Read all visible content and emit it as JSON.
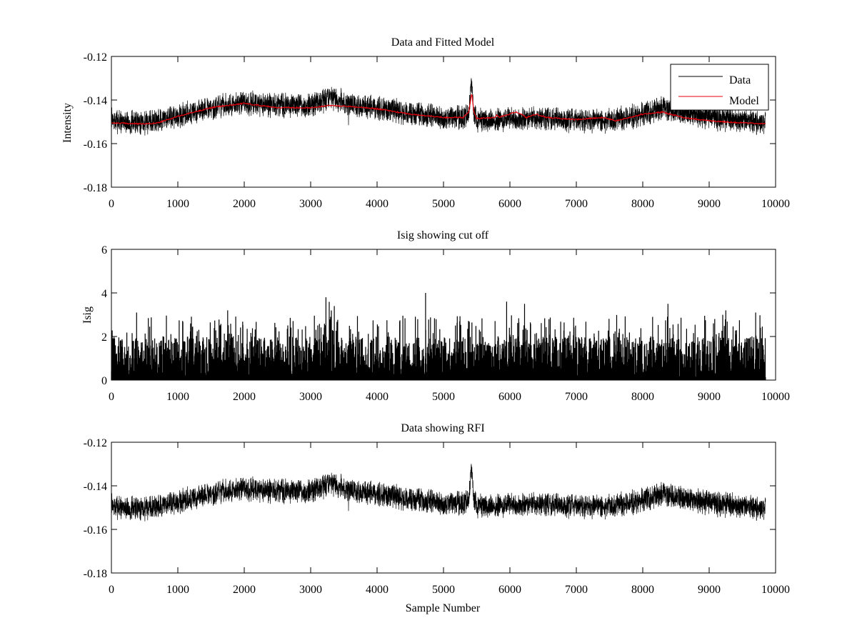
{
  "chart_data": [
    {
      "type": "line",
      "title": "Data and Fitted Model",
      "xlabel": "",
      "ylabel": "Intensity",
      "xlim": [
        0,
        10000
      ],
      "ylim": [
        -0.18,
        -0.12
      ],
      "xticks": [
        0,
        1000,
        2000,
        3000,
        4000,
        5000,
        6000,
        7000,
        8000,
        9000,
        10000
      ],
      "yticks": [
        -0.18,
        -0.16,
        -0.14,
        -0.12
      ],
      "xtick_labels": [
        "0",
        "1000",
        "2000",
        "3000",
        "4000",
        "5000",
        "6000",
        "7000",
        "8000",
        "9000",
        "10000"
      ],
      "ytick_labels": [
        "-0.18",
        "-0.16",
        "-0.14",
        "-0.12"
      ],
      "grid": false,
      "legend": "top-right",
      "x_end": 9850,
      "noise_amplitude": 0.0045,
      "series": [
        {
          "name": "Data",
          "color": "#000000",
          "baseline": [
            [
              0,
              -0.1495
            ],
            [
              500,
              -0.1505
            ],
            [
              1000,
              -0.1475
            ],
            [
              1500,
              -0.1435
            ],
            [
              2000,
              -0.1415
            ],
            [
              2500,
              -0.1425
            ],
            [
              3000,
              -0.1425
            ],
            [
              3300,
              -0.1385
            ],
            [
              3600,
              -0.142
            ],
            [
              4000,
              -0.144
            ],
            [
              4500,
              -0.146
            ],
            [
              5000,
              -0.148
            ],
            [
              5300,
              -0.148
            ],
            [
              5380,
              -0.146
            ],
            [
              5420,
              -0.131
            ],
            [
              5450,
              -0.145
            ],
            [
              5500,
              -0.1495
            ],
            [
              6000,
              -0.1485
            ],
            [
              6500,
              -0.1485
            ],
            [
              7000,
              -0.1495
            ],
            [
              7500,
              -0.1495
            ],
            [
              8000,
              -0.1465
            ],
            [
              8300,
              -0.1435
            ],
            [
              8600,
              -0.1455
            ],
            [
              9000,
              -0.148
            ],
            [
              9500,
              -0.1495
            ],
            [
              9850,
              -0.1505
            ]
          ]
        },
        {
          "name": "Model",
          "color": "#e8000b",
          "baseline": [
            [
              0,
              -0.1505
            ],
            [
              500,
              -0.151
            ],
            [
              700,
              -0.1505
            ],
            [
              1000,
              -0.1475
            ],
            [
              1500,
              -0.1435
            ],
            [
              2000,
              -0.1415
            ],
            [
              2500,
              -0.1435
            ],
            [
              3000,
              -0.1435
            ],
            [
              3300,
              -0.1425
            ],
            [
              3600,
              -0.143
            ],
            [
              4000,
              -0.144
            ],
            [
              4500,
              -0.1465
            ],
            [
              5000,
              -0.148
            ],
            [
              5300,
              -0.148
            ],
            [
              5380,
              -0.1455
            ],
            [
              5425,
              -0.1365
            ],
            [
              5455,
              -0.145
            ],
            [
              5500,
              -0.1485
            ],
            [
              5780,
              -0.148
            ],
            [
              5800,
              -0.1465
            ],
            [
              5830,
              -0.148
            ],
            [
              6100,
              -0.1455
            ],
            [
              6250,
              -0.148
            ],
            [
              6400,
              -0.1465
            ],
            [
              6550,
              -0.148
            ],
            [
              7000,
              -0.149
            ],
            [
              7400,
              -0.148
            ],
            [
              7600,
              -0.1495
            ],
            [
              8000,
              -0.1465
            ],
            [
              8300,
              -0.1455
            ],
            [
              8600,
              -0.148
            ],
            [
              9000,
              -0.1495
            ],
            [
              9500,
              -0.1505
            ],
            [
              9850,
              -0.151
            ]
          ]
        }
      ]
    },
    {
      "type": "line",
      "title": "Isig showing cut off",
      "xlabel": "",
      "ylabel": "Isig",
      "xlim": [
        0,
        10000
      ],
      "ylim": [
        0,
        6
      ],
      "xticks": [
        0,
        1000,
        2000,
        3000,
        4000,
        5000,
        6000,
        7000,
        8000,
        9000,
        10000
      ],
      "yticks": [
        0,
        2,
        4,
        6
      ],
      "xtick_labels": [
        "0",
        "1000",
        "2000",
        "3000",
        "4000",
        "5000",
        "6000",
        "7000",
        "8000",
        "9000",
        "10000"
      ],
      "ytick_labels": [
        "0",
        "2",
        "4",
        "6"
      ],
      "grid": false,
      "x_end": 9850,
      "series": [
        {
          "color": "#000000",
          "typical_range": [
            0,
            2
          ],
          "spikes": [
            [
              380,
              3.1
            ],
            [
              1750,
              3.2
            ],
            [
              3230,
              3.8
            ],
            [
              3300,
              2.9
            ],
            [
              4730,
              4.0
            ],
            [
              5950,
              3.6
            ],
            [
              6220,
              3.5
            ],
            [
              8380,
              3.5
            ],
            [
              9250,
              3.2
            ],
            [
              9700,
              3.1
            ]
          ]
        }
      ]
    },
    {
      "type": "line",
      "title": "Data showing RFI",
      "xlabel": "Sample Number",
      "ylabel": "",
      "xlim": [
        0,
        10000
      ],
      "ylim": [
        -0.18,
        -0.12
      ],
      "xticks": [
        0,
        1000,
        2000,
        3000,
        4000,
        5000,
        6000,
        7000,
        8000,
        9000,
        10000
      ],
      "yticks": [
        -0.18,
        -0.16,
        -0.14,
        -0.12
      ],
      "xtick_labels": [
        "0",
        "1000",
        "2000",
        "3000",
        "4000",
        "5000",
        "6000",
        "7000",
        "8000",
        "9000",
        "10000"
      ],
      "ytick_labels": [
        "-0.18",
        "-0.16",
        "-0.14",
        "-0.12"
      ],
      "grid": false,
      "x_end": 9850,
      "noise_amplitude": 0.0045,
      "series": [
        {
          "color": "#000000",
          "baseline": [
            [
              0,
              -0.1495
            ],
            [
              500,
              -0.1505
            ],
            [
              1000,
              -0.1475
            ],
            [
              1500,
              -0.1435
            ],
            [
              2000,
              -0.1415
            ],
            [
              2500,
              -0.1425
            ],
            [
              3000,
              -0.1425
            ],
            [
              3300,
              -0.1385
            ],
            [
              3600,
              -0.142
            ],
            [
              4000,
              -0.144
            ],
            [
              4500,
              -0.146
            ],
            [
              5000,
              -0.148
            ],
            [
              5300,
              -0.148
            ],
            [
              5380,
              -0.146
            ],
            [
              5420,
              -0.131
            ],
            [
              5450,
              -0.145
            ],
            [
              5500,
              -0.1495
            ],
            [
              6000,
              -0.1485
            ],
            [
              6500,
              -0.1485
            ],
            [
              7000,
              -0.1495
            ],
            [
              7500,
              -0.1495
            ],
            [
              8000,
              -0.1465
            ],
            [
              8300,
              -0.1435
            ],
            [
              8600,
              -0.1455
            ],
            [
              9000,
              -0.148
            ],
            [
              9500,
              -0.1495
            ],
            [
              9850,
              -0.1505
            ]
          ]
        }
      ]
    }
  ]
}
